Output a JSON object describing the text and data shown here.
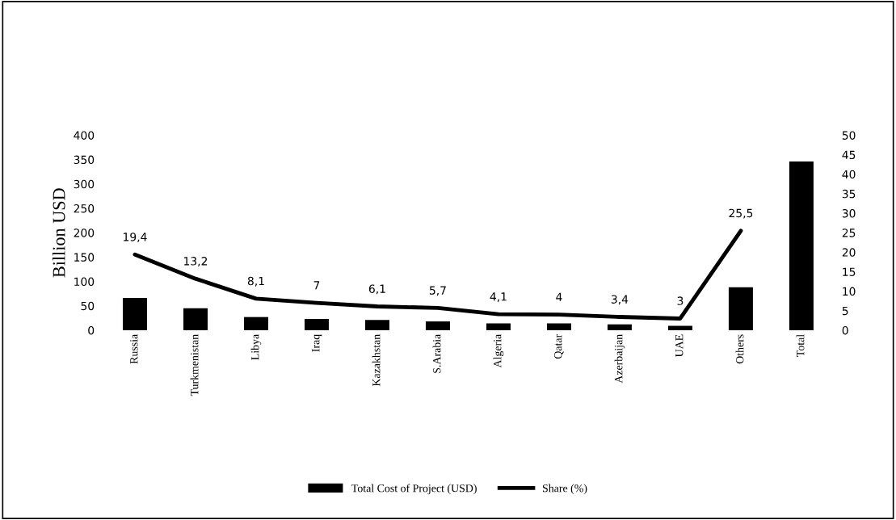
{
  "chart_data": {
    "type": "bar",
    "ylabel": "Billion USD",
    "categories": [
      "Russia",
      "Turkmenistan",
      "Libya",
      "Iraq",
      "Kazakhstan",
      "S.Arabia",
      "Algeria",
      "Qatar",
      "Azerbaijan",
      "UAE",
      "Others",
      "Total"
    ],
    "series": [
      {
        "name": "Total Cost of Project (USD)",
        "color": "#000000",
        "values": [
          66,
          45,
          27,
          23,
          21,
          18,
          14,
          14,
          12,
          9,
          88,
          346
        ]
      },
      {
        "name": "Share (%)",
        "type": "line",
        "axis": "y2",
        "color": "#000000",
        "values": [
          19.4,
          13.2,
          8.1,
          7,
          6.1,
          5.7,
          4.1,
          4,
          3.4,
          3,
          25.5,
          null
        ],
        "value_labels": [
          "19,4",
          "13,2",
          "8,1",
          "7",
          "6,1",
          "5,7",
          "4,1",
          "4",
          "3,4",
          "3",
          "25,5",
          null
        ]
      }
    ],
    "ylim": [
      0,
      400
    ],
    "yticks": [
      0,
      50,
      100,
      150,
      200,
      250,
      300,
      350,
      400
    ],
    "y2lim": [
      0,
      50
    ],
    "y2ticks": [
      0,
      5,
      10,
      15,
      20,
      25,
      30,
      35,
      40,
      45,
      50
    ],
    "grid": false,
    "legend": "bottom",
    "marker": "none",
    "line_style": "solid"
  }
}
